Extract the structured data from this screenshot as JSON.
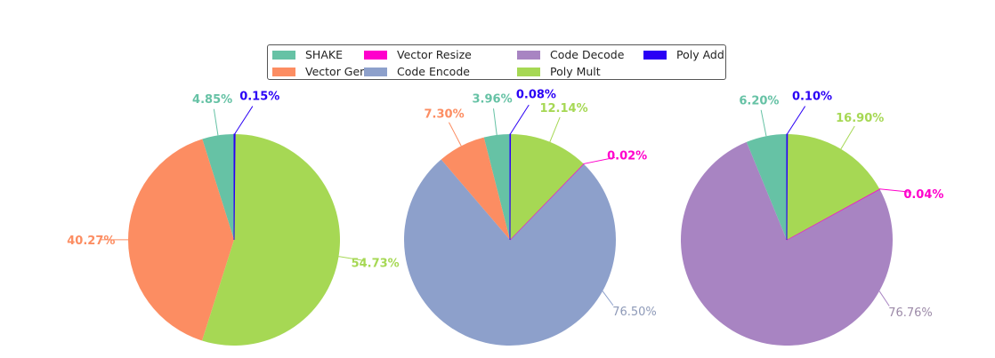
{
  "chart_data": [
    {
      "type": "pie",
      "slices": [
        {
          "label": "SHAKE",
          "value": 4.85,
          "text": "4.85%"
        },
        {
          "label": "Vector Gen",
          "value": 40.27,
          "text": "40.27%"
        },
        {
          "label": "Poly Mult",
          "value": 54.73,
          "text": "54.73%"
        },
        {
          "label": "Poly Add",
          "value": 0.15,
          "text": "0.15%"
        }
      ]
    },
    {
      "type": "pie",
      "slices": [
        {
          "label": "SHAKE",
          "value": 3.96,
          "text": "3.96%"
        },
        {
          "label": "Vector Gen",
          "value": 7.3,
          "text": "7.30%"
        },
        {
          "label": "Code Encode",
          "value": 76.5,
          "text": "76.50%"
        },
        {
          "label": "Vector Resize",
          "value": 0.02,
          "text": "0.02%"
        },
        {
          "label": "Poly Mult",
          "value": 12.14,
          "text": "12.14%"
        },
        {
          "label": "Poly Add",
          "value": 0.08,
          "text": "0.08%"
        }
      ]
    },
    {
      "type": "pie",
      "slices": [
        {
          "label": "SHAKE",
          "value": 6.2,
          "text": "6.20%"
        },
        {
          "label": "Code Decode",
          "value": 76.76,
          "text": "76.76%"
        },
        {
          "label": "Vector Resize",
          "value": 0.04,
          "text": "0.04%"
        },
        {
          "label": "Poly Mult",
          "value": 16.9,
          "text": "16.90%"
        },
        {
          "label": "Poly Add",
          "value": 0.1,
          "text": "0.10%"
        }
      ]
    }
  ],
  "legend": {
    "placement": "top-center",
    "items": [
      {
        "label": "SHAKE",
        "color": "#66c2a5"
      },
      {
        "label": "Vector Gen",
        "color": "#fc8d62"
      },
      {
        "label": "Vector Resize",
        "color": "#ff00cc"
      },
      {
        "label": "Code Encode",
        "color": "#8da0cb"
      },
      {
        "label": "Code Decode",
        "color": "#a884c2"
      },
      {
        "label": "Poly Mult",
        "color": "#a6d854"
      },
      {
        "label": "Poly Add",
        "color": "#2a00f5"
      }
    ]
  },
  "label_colors": {
    "Code Encode": "#8e9ab8",
    "Code Decode": "#9c8aa8"
  }
}
